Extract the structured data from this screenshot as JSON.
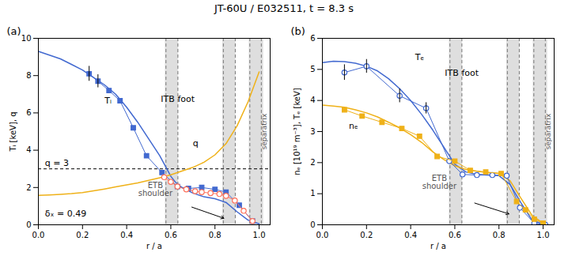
{
  "title": "JT-60U / E032511, t = 8.3 s",
  "chart_data": [
    {
      "type": "line",
      "title": "(a)",
      "xlabel": "r / a",
      "ylabel": "Tᵢ [keV], q",
      "xlim": [
        0.0,
        1.05
      ],
      "ylim": [
        0,
        10
      ],
      "xticks": [
        {
          "value": 0.0,
          "label": "0.0"
        },
        0.2,
        0.4,
        0.6,
        0.8,
        {
          "value": 1.0,
          "label": "1.0"
        }
      ],
      "yticks": [
        0,
        2,
        4,
        6,
        8,
        10
      ],
      "series": [
        {
          "color": "#4269d0",
          "line_style": "solid",
          "x": [
            0.0,
            0.05,
            0.1,
            0.15,
            0.2,
            0.25,
            0.3,
            0.35,
            0.4,
            0.45,
            0.5,
            0.55,
            0.6,
            0.62,
            0.65,
            0.7,
            0.75,
            0.8,
            0.85,
            0.9,
            0.95,
            1.0
          ],
          "values": [
            9.3,
            9.1,
            8.9,
            8.6,
            8.3,
            7.9,
            7.5,
            7.0,
            6.3,
            5.5,
            4.6,
            3.7,
            2.6,
            2.3,
            2.0,
            1.7,
            1.5,
            1.4,
            1.2,
            0.7,
            0.25,
            0.05
          ]
        },
        {
          "color": "#efb118",
          "line_style": "solid",
          "x": [
            0.0,
            0.05,
            0.1,
            0.15,
            0.2,
            0.25,
            0.3,
            0.35,
            0.4,
            0.45,
            0.5,
            0.55,
            0.6,
            0.65,
            0.7,
            0.75,
            0.8,
            0.85,
            0.9,
            0.95,
            1.0
          ],
          "values": [
            1.58,
            1.6,
            1.63,
            1.67,
            1.73,
            1.82,
            1.92,
            2.03,
            2.14,
            2.25,
            2.38,
            2.52,
            2.68,
            2.88,
            3.08,
            3.35,
            3.75,
            4.35,
            5.3,
            6.6,
            8.2
          ]
        },
        {
          "color": "#4269d0",
          "line_style": "solid",
          "marker": "square",
          "x": [
            0.23,
            0.27,
            0.32,
            0.37,
            0.43,
            0.49,
            0.56,
            0.63,
            0.68,
            0.74,
            0.8,
            0.85,
            0.91,
            0.97
          ],
          "values": [
            8.1,
            7.7,
            7.2,
            6.65,
            5.2,
            3.7,
            2.8,
            2.05,
            1.95,
            2.0,
            1.9,
            1.75,
            1.05,
            0.2
          ]
        },
        {
          "color": "#ff725c",
          "line_style": "solid",
          "marker": "open_circle",
          "x": [
            0.57,
            0.6,
            0.63,
            0.67,
            0.71,
            0.74,
            0.78,
            0.82,
            0.85,
            0.89,
            0.93,
            0.97
          ],
          "values": [
            2.55,
            2.3,
            2.05,
            1.9,
            1.8,
            1.75,
            1.7,
            1.65,
            1.55,
            1.3,
            0.75,
            0.2
          ]
        }
      ],
      "error_bars": {
        "x": [
          0.23,
          0.27
        ],
        "y": [
          8.1,
          7.7
        ],
        "yerr": [
          0.4,
          0.35
        ]
      },
      "hlines": [
        3.0
      ],
      "vlines": [
        0.578,
        0.632,
        0.838,
        0.892,
        0.958,
        1.01
      ],
      "shaded_regions": [
        {
          "xmin": 0.575,
          "xmax": 0.635,
          "color": "#c8c8c8"
        },
        {
          "xmin": 0.835,
          "xmax": 0.895,
          "color": "#c8c8c8"
        },
        {
          "xmin": 0.955,
          "xmax": 1.02,
          "color": "#c8c8c8"
        }
      ],
      "arrows": [
        {
          "x0": 0.695,
          "y0": 0.95,
          "x1": 0.84,
          "y1": 0.35
        }
      ],
      "annotations": [
        {
          "text": "Tᵢ",
          "x": 0.3,
          "y": 6.5
        },
        {
          "text": "q",
          "x": 0.7,
          "y": 4.2
        },
        {
          "text": "q = 3",
          "x": 0.03,
          "y": 3.15
        },
        {
          "text": "ITB foot",
          "x": 0.555,
          "y": 6.6
        },
        {
          "text": "δₓ = 0.49",
          "x": 0.03,
          "y": 0.45
        },
        {
          "text": "ETB\nshoulder",
          "x": 0.53,
          "y": 1.55
        },
        {
          "text": "separatrix",
          "x": 1.022,
          "y": 5.0,
          "orientation": "vertical"
        }
      ]
    },
    {
      "type": "line",
      "title": "(b)",
      "xlabel": "r / a",
      "ylabel": "nₑ [10¹⁹ m⁻³], Tₑ [keV]",
      "xlim": [
        0.0,
        1.05
      ],
      "ylim": [
        0,
        6
      ],
      "xticks": [
        {
          "value": 0.0,
          "label": "0.0"
        },
        0.2,
        0.4,
        0.6,
        0.8,
        {
          "value": 1.0,
          "label": "1.0"
        }
      ],
      "yticks": [
        0,
        1,
        2,
        3,
        4,
        5,
        6
      ],
      "series": [
        {
          "color": "#4269d0",
          "line_style": "solid",
          "x": [
            0.0,
            0.05,
            0.1,
            0.15,
            0.2,
            0.25,
            0.3,
            0.35,
            0.4,
            0.45,
            0.5,
            0.55,
            0.6,
            0.65,
            0.7,
            0.75,
            0.8,
            0.85,
            0.9,
            0.95,
            1.0
          ],
          "values": [
            5.22,
            5.26,
            5.25,
            5.2,
            5.1,
            4.95,
            4.7,
            4.38,
            4.0,
            3.55,
            3.05,
            2.5,
            1.95,
            1.7,
            1.62,
            1.6,
            1.58,
            1.3,
            0.7,
            0.15,
            0.02
          ]
        },
        {
          "color": "#efb118",
          "line_style": "solid",
          "x": [
            0.0,
            0.05,
            0.1,
            0.15,
            0.2,
            0.25,
            0.3,
            0.35,
            0.4,
            0.45,
            0.5,
            0.55,
            0.6,
            0.65,
            0.7,
            0.75,
            0.8,
            0.85,
            0.9,
            0.95,
            1.0
          ],
          "values": [
            3.85,
            3.82,
            3.78,
            3.7,
            3.6,
            3.47,
            3.3,
            3.12,
            2.9,
            2.65,
            2.35,
            2.1,
            1.9,
            1.78,
            1.72,
            1.68,
            1.65,
            1.42,
            0.85,
            0.3,
            0.05
          ]
        },
        {
          "color": "#4269d0",
          "line_style": "solid",
          "marker": "open_circle",
          "x": [
            0.1,
            0.2,
            0.35,
            0.47,
            0.575,
            0.635,
            0.7,
            0.77,
            0.835,
            0.895,
            0.96,
            1.01
          ],
          "values": [
            4.9,
            5.1,
            4.15,
            3.75,
            2.05,
            1.62,
            1.6,
            1.6,
            1.58,
            0.55,
            0.05,
            0.0
          ]
        },
        {
          "color": "#efb118",
          "line_style": "solid",
          "marker": "square",
          "x": [
            0.1,
            0.18,
            0.27,
            0.36,
            0.44,
            0.52,
            0.6,
            0.67,
            0.74,
            0.81,
            0.88,
            0.92,
            0.96,
            1.0
          ],
          "values": [
            3.7,
            3.5,
            3.3,
            3.1,
            2.85,
            2.2,
            2.05,
            1.75,
            1.7,
            1.65,
            0.75,
            0.48,
            0.18,
            0.05
          ]
        }
      ],
      "error_bars": {
        "x": [
          0.1,
          0.2,
          0.35,
          0.47
        ],
        "y": [
          4.9,
          5.1,
          4.15,
          3.75
        ],
        "yerr": [
          0.25,
          0.22,
          0.22,
          0.18
        ]
      },
      "vlines": [
        0.578,
        0.632,
        0.838,
        0.892,
        0.958,
        1.01
      ],
      "shaded_regions": [
        {
          "xmin": 0.575,
          "xmax": 0.635,
          "color": "#c8c8c8"
        },
        {
          "xmin": 0.835,
          "xmax": 0.895,
          "color": "#c8c8c8"
        },
        {
          "xmin": 0.955,
          "xmax": 1.02,
          "color": "#c8c8c8"
        }
      ],
      "arrows": [
        {
          "x0": 0.69,
          "y0": 0.7,
          "x1": 0.845,
          "y1": 0.35
        }
      ],
      "annotations": [
        {
          "text": "Tₑ",
          "x": 0.42,
          "y": 5.3
        },
        {
          "text": "nₑ",
          "x": 0.12,
          "y": 3.1
        },
        {
          "text": "ITB foot",
          "x": 0.555,
          "y": 4.8
        },
        {
          "text": "ETB\nshoulder",
          "x": 0.53,
          "y": 1.15
        },
        {
          "text": "separatrix",
          "x": 1.022,
          "y": 3.0,
          "orientation": "vertical"
        }
      ]
    }
  ]
}
